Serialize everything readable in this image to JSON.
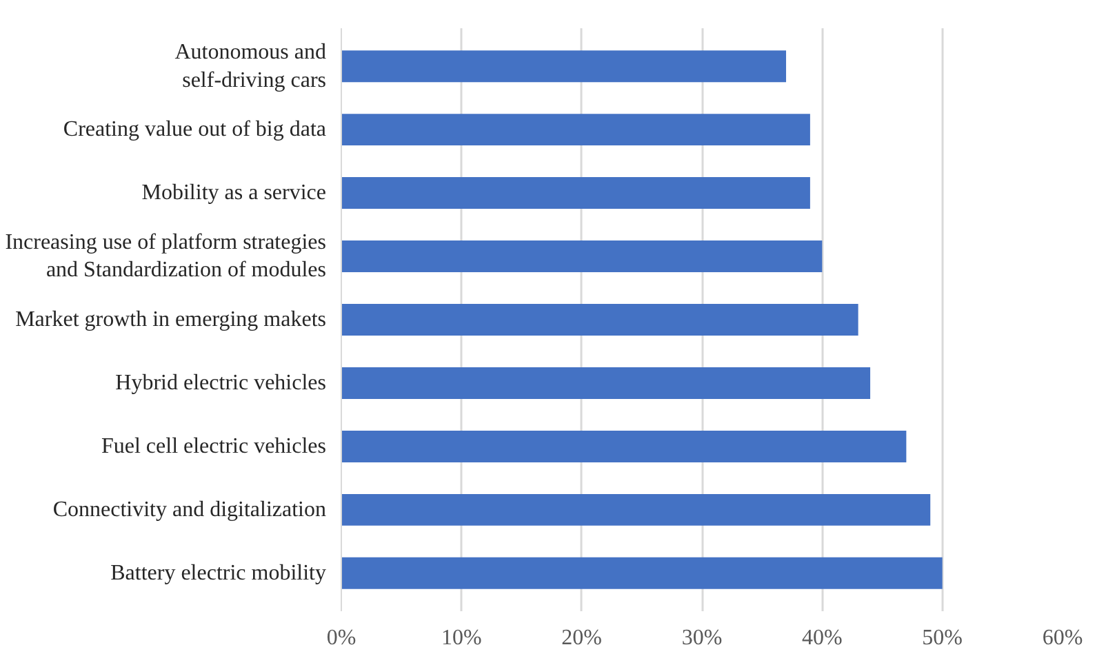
{
  "chart_data": {
    "type": "bar",
    "orientation": "horizontal",
    "categories": [
      "Autonomous and\nself-driving cars",
      "Creating value out of big data",
      "Mobility as a service",
      "Increasing use of platform strategies\nand Standardization of modules",
      "Market growth in emerging makets",
      "Hybrid electric vehicles",
      "Fuel cell electric vehicles",
      "Connectivity and digitalization",
      "Battery electric mobility"
    ],
    "values": [
      37,
      39,
      39,
      40,
      43,
      44,
      47,
      49,
      50
    ],
    "color": "#4472c4",
    "xlim": [
      0,
      60
    ],
    "xticks": [
      {
        "value": 0,
        "label": "0%"
      },
      {
        "value": 10,
        "label": "10%"
      },
      {
        "value": 20,
        "label": "20%"
      },
      {
        "value": 30,
        "label": "30%"
      },
      {
        "value": 40,
        "label": "40%"
      },
      {
        "value": 50,
        "label": "50%"
      },
      {
        "value": 60,
        "label": "60%"
      }
    ],
    "grid": "x"
  }
}
